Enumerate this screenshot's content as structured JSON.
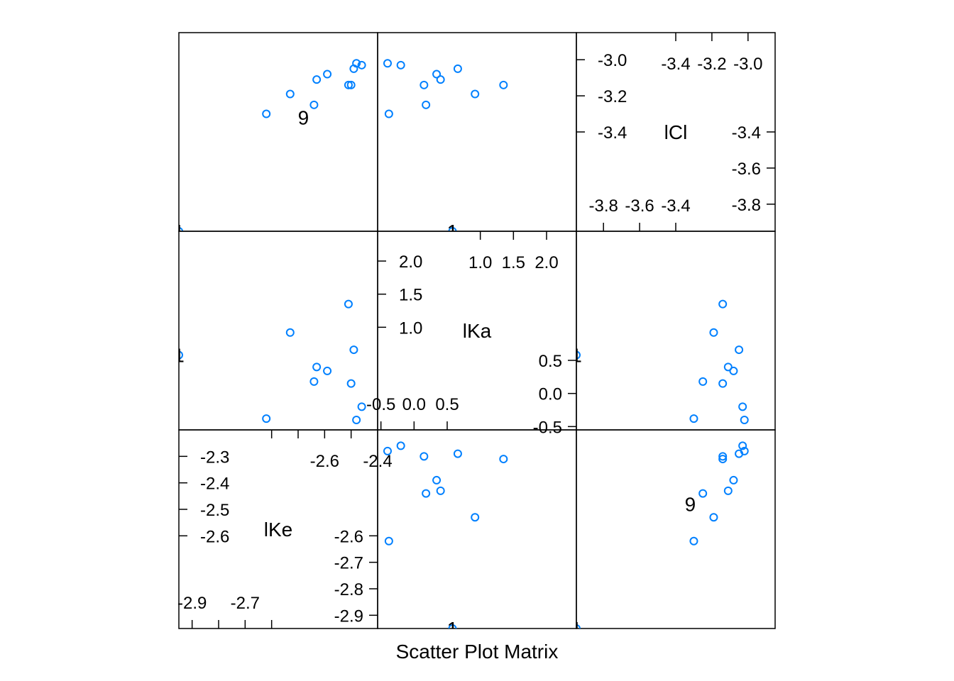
{
  "chart_data": {
    "type": "scatter",
    "title": "",
    "xlabel": "Scatter Plot Matrix",
    "point_color": "#0080ff",
    "variables": [
      {
        "name": "lKe",
        "range": [
          -2.95,
          -2.2
        ],
        "ticks_low": [
          -2.9,
          -2.8,
          -2.7,
          -2.6
        ],
        "ticks_high": [
          -2.6,
          -2.5,
          -2.4,
          -2.3
        ],
        "x_labels_low": [
          "-2.9",
          "-2.7"
        ],
        "x_labels_high": [
          "-2.6",
          "-2.4"
        ],
        "y_labels_low": [
          "-2.6",
          "-2.7",
          "-2.8",
          "-2.9"
        ],
        "y_labels_high": [
          "-2.3",
          "-2.4",
          "-2.5",
          "-2.6"
        ]
      },
      {
        "name": "lKa",
        "range": [
          -0.55,
          2.45
        ],
        "ticks_low": [
          -0.5,
          0.0,
          0.5
        ],
        "ticks_high": [
          1.0,
          1.5,
          2.0
        ],
        "x_labels_low": [
          "-0.5",
          "0.0",
          "0.5"
        ],
        "x_labels_high": [
          "1.0",
          "1.5",
          "2.0"
        ],
        "y_labels_low": [
          "0.5",
          "0.0",
          "-0.5"
        ],
        "y_labels_high": [
          "2.0",
          "1.5",
          "1.0"
        ]
      },
      {
        "name": "lCl",
        "range": [
          -3.95,
          -2.85
        ],
        "ticks_low": [
          -3.8,
          -3.6,
          -3.4
        ],
        "ticks_high": [
          -3.4,
          -3.2,
          -3.0
        ],
        "x_labels_low": [
          "-3.8",
          "-3.6",
          "-3.4"
        ],
        "x_labels_high": [
          "-3.4",
          "-3.2",
          "-3.0"
        ],
        "y_labels_low": [
          "-3.4",
          "-3.6",
          "-3.8"
        ],
        "y_labels_high": [
          "-3.0",
          "-3.2",
          "-3.4"
        ]
      }
    ],
    "points": [
      [
        -2.31,
        1.35,
        -3.14
      ],
      [
        -2.29,
        0.66,
        -3.05
      ],
      [
        -2.44,
        0.18,
        -3.25
      ],
      [
        -2.28,
        -0.4,
        -3.02
      ],
      [
        -2.43,
        0.4,
        -3.11
      ],
      [
        -2.39,
        0.34,
        -3.08
      ],
      [
        -2.3,
        0.15,
        -3.14
      ],
      [
        -2.26,
        -0.2,
        -3.03
      ],
      [
        -2.95,
        0.58,
        -3.95
      ],
      [
        -2.53,
        0.92,
        -3.19
      ],
      [
        -2.62,
        -0.38,
        -3.3
      ]
    ],
    "point_labels": [
      {
        "label": "9",
        "x": -2.48,
        "y": -2.62,
        "z": -3.32
      },
      {
        "label": "1",
        "x": -2.95,
        "y": 0.58,
        "z": -3.95
      }
    ]
  }
}
